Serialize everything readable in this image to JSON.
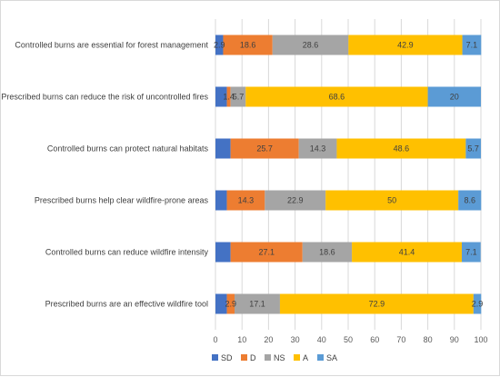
{
  "chart_data": {
    "type": "bar",
    "orientation": "horizontal",
    "stacked": true,
    "categories": [
      "Controlled burns are essential for forest management",
      "Prescribed burns can reduce the risk of uncontrolled fires",
      "Controlled burns can protect natural habitats",
      "Prescribed burns help clear wildfire-prone areas",
      "Controlled burns can reduce wildfire intensity",
      "Prescribed burns are an effective wildfire tool"
    ],
    "series": [
      {
        "name": "SD",
        "color": "#4472c4",
        "values": [
          2.9,
          4.3,
          5.7,
          4.3,
          5.7,
          4.3
        ],
        "labels": [
          "2.9",
          "",
          "",
          "",
          "",
          ""
        ]
      },
      {
        "name": "D",
        "color": "#ed7d31",
        "values": [
          18.6,
          1.4,
          25.7,
          14.3,
          27.1,
          2.9
        ],
        "labels": [
          "18.6",
          "1.4",
          "25.7",
          "14.3",
          "27.1",
          "2.9"
        ]
      },
      {
        "name": "NS",
        "color": "#a5a5a5",
        "values": [
          28.6,
          5.7,
          14.3,
          22.9,
          18.6,
          17.1
        ],
        "labels": [
          "28.6",
          "5.7",
          "14.3",
          "22.9",
          "18.6",
          "17.1"
        ]
      },
      {
        "name": "A",
        "color": "#ffc000",
        "values": [
          42.9,
          68.6,
          48.6,
          50,
          41.4,
          72.9
        ],
        "labels": [
          "42.9",
          "68.6",
          "48.6",
          "50",
          "41.4",
          "72.9"
        ]
      },
      {
        "name": "SA",
        "color": "#5b9bd5",
        "values": [
          7.1,
          20,
          5.7,
          8.6,
          7.1,
          2.9
        ],
        "labels": [
          "7.1",
          "20",
          "5.7",
          "8.6",
          "7.1",
          "2.9"
        ]
      }
    ],
    "xlim": [
      0,
      100
    ],
    "xticks": [
      0,
      10,
      20,
      30,
      40,
      50,
      60,
      70,
      80,
      90,
      100
    ],
    "title": "",
    "xlabel": "",
    "ylabel": "",
    "grid": "vertical",
    "legend": "bottom",
    "colors": {
      "gridline": "#d9d9d9",
      "text": "#404040"
    }
  }
}
